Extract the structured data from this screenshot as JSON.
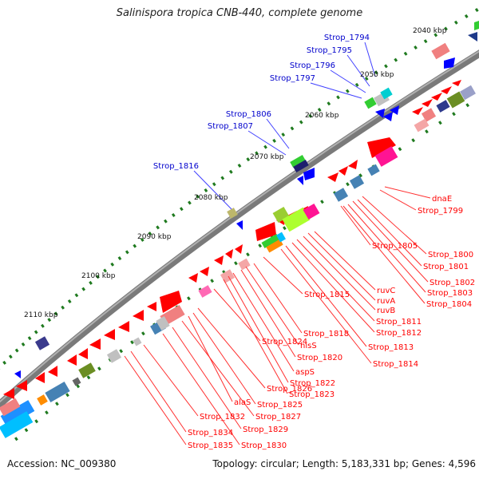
{
  "title": "Salinispora tropica CNB-440, complete genome",
  "footer": {
    "accession": "Accession: NC_009380",
    "summary": "Topology: circular; Length: 5,183,331 bp; Genes: 4,596"
  },
  "kbp_marks": [
    "2040 kbp",
    "2050 kbp",
    "2060 kbp",
    "2070 kbp",
    "2080 kbp",
    "2090 kbp",
    "2100 kbp",
    "2110 kbp"
  ],
  "blue_labels": [
    "Strop_1794",
    "Strop_1795",
    "Strop_1796",
    "Strop_1797",
    "Strop_1806",
    "Strop_1807",
    "Strop_1816"
  ],
  "red_labels": [
    "dnaE",
    "Strop_1799",
    "Strop_1800",
    "Strop_1801",
    "Strop_1805",
    "Strop_1802",
    "Strop_1803",
    "Strop_1804",
    "ruvC",
    "ruvA",
    "ruvB",
    "Strop_1811",
    "Strop_1812",
    "Strop_1813",
    "Strop_1814",
    "Strop_1815",
    "Strop_1818",
    "hisS",
    "Strop_1820",
    "Strop_1824",
    "aspS",
    "Strop_1822",
    "Strop_1823",
    "Strop_1826",
    "alaS",
    "Strop_1825",
    "Strop_1827",
    "Strop_1832",
    "Strop_1829",
    "Strop_1834",
    "Strop_1830",
    "Strop_1835"
  ],
  "colors": {
    "genome_line": "#808080",
    "forward_gene": "#ff0000",
    "reverse_gene": "#0000ff",
    "callout_red": "#ff0000",
    "callout_blue": "#0000cc",
    "tick_green": "#1f7a1f"
  }
}
